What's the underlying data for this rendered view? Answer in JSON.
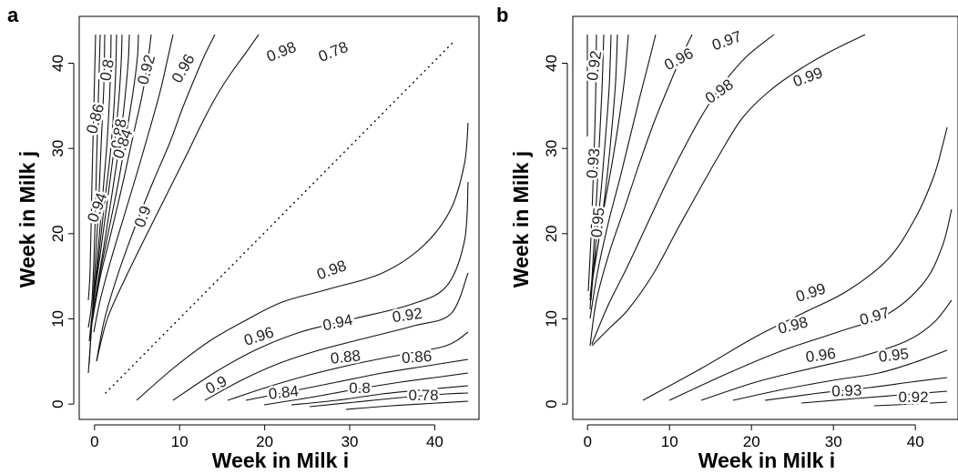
{
  "chart_data": [
    {
      "panel": "a",
      "type": "contour",
      "xlabel": "Week in Milk i",
      "ylabel": "Week in Milk j",
      "xlim": [
        0,
        45
      ],
      "ylim": [
        0,
        45
      ],
      "xticks": [
        0,
        10,
        20,
        30,
        40
      ],
      "yticks": [
        0,
        10,
        20,
        30,
        40
      ],
      "grid": false,
      "diagonal_dotted": true,
      "contours": [
        {
          "level": 0.98,
          "upper": [
            [
              20,
              44
            ],
            [
              24,
              42
            ],
            [
              28,
              40
            ],
            [
              35,
              43
            ]
          ],
          "lower": [
            [
              20,
              6
            ],
            [
              30,
              12
            ],
            [
              38,
              17
            ],
            [
              44,
              34
            ]
          ]
        },
        {
          "level": 0.96,
          "upper": [
            [
              15,
              44
            ],
            [
              18,
              40
            ],
            [
              22,
              36
            ],
            [
              32,
              43
            ]
          ],
          "lower": [
            [
              16,
              4
            ],
            [
              26,
              10
            ],
            [
              36,
              12
            ],
            [
              44,
              27
            ]
          ]
        },
        {
          "level": 0.94,
          "upper": [
            [
              10,
              44
            ],
            [
              14,
              36
            ],
            [
              18,
              28
            ],
            [
              29,
              43
            ]
          ],
          "lower": [
            [
              12,
              3
            ],
            [
              24,
              8
            ],
            [
              34,
              10
            ],
            [
              44,
              23
            ]
          ]
        },
        {
          "level": 0.92,
          "upper": [
            [
              6,
              44
            ],
            [
              8,
              36
            ],
            [
              12,
              28
            ],
            [
              26,
              43
            ]
          ],
          "lower": [
            [
              10,
              2
            ],
            [
              22,
              6
            ],
            [
              32,
              8
            ],
            [
              44,
              18
            ]
          ]
        },
        {
          "level": 0.9,
          "upper": [
            [
              3,
              44
            ],
            [
              4,
              32
            ],
            [
              6,
              22
            ],
            [
              22,
              43
            ]
          ],
          "lower": [
            [
              8,
              1
            ],
            [
              20,
              4
            ],
            [
              30,
              6
            ],
            [
              44,
              12
            ]
          ]
        },
        {
          "level": 0.88,
          "upper": [
            [
              2,
              44
            ],
            [
              3,
              30
            ],
            [
              5,
              16
            ],
            [
              18,
              43
            ]
          ],
          "lower": [
            [
              6,
              1
            ],
            [
              18,
              3
            ],
            [
              28,
              5
            ],
            [
              44,
              9
            ]
          ]
        },
        {
          "level": 0.86,
          "upper": [
            [
              1,
              44
            ],
            [
              2,
              30
            ],
            [
              4,
              10
            ],
            [
              14,
              43
            ]
          ],
          "lower": [
            [
              4,
              1
            ],
            [
              16,
              2
            ],
            [
              26,
              4
            ],
            [
              44,
              7
            ]
          ]
        },
        {
          "level": 0.84,
          "upper": [
            [
              1,
              44
            ],
            [
              1.5,
              32
            ],
            [
              3,
              6
            ],
            [
              10,
              43
            ]
          ],
          "lower": [
            [
              3,
              1
            ],
            [
              14,
              2
            ],
            [
              24,
              3
            ],
            [
              44,
              6
            ]
          ]
        },
        {
          "level": 0.8,
          "upper": [
            [
              1,
              44
            ],
            [
              1,
              36
            ],
            [
              2,
              4
            ],
            [
              6,
              43
            ]
          ],
          "lower": [
            [
              2,
              1
            ],
            [
              12,
              1
            ],
            [
              22,
              2
            ],
            [
              44,
              4
            ]
          ]
        },
        {
          "level": 0.78,
          "upper": [
            [
              1,
              44
            ],
            [
              1,
              40
            ],
            [
              1.5,
              2
            ],
            [
              3,
              43
            ]
          ],
          "lower": [
            [
              1,
              1
            ],
            [
              10,
              1
            ],
            [
              20,
              1
            ],
            [
              44,
              2
            ]
          ]
        }
      ],
      "labels": [
        "0.8",
        "0.88",
        "0.92",
        "0.96",
        "0.98",
        "0.78",
        "0.86",
        "0.84",
        "0.94",
        "0.9",
        "0.98",
        "0.96",
        "0.94",
        "0.92",
        "0.88",
        "0.86",
        "0.9",
        "0.84",
        "0.8",
        "0.78"
      ]
    },
    {
      "panel": "b",
      "type": "contour",
      "xlabel": "Week in Milk i",
      "ylabel": "Week in Milk j",
      "xlim": [
        0,
        45
      ],
      "ylim": [
        0,
        45
      ],
      "xticks": [
        0,
        10,
        20,
        30,
        40
      ],
      "yticks": [
        0,
        10,
        20,
        30,
        40
      ],
      "grid": false,
      "diagonal_dotted": false,
      "labels": [
        "0.92",
        "0.96",
        "0.97",
        "0.98",
        "0.99",
        "0.93",
        "0.95",
        "0.99",
        "0.98",
        "0.97",
        "0.96",
        "0.95",
        "0.93",
        "0.92"
      ]
    }
  ]
}
